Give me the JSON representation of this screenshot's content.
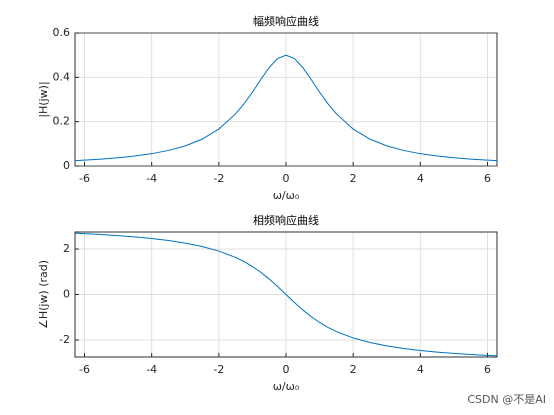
{
  "chart_data": [
    {
      "type": "line",
      "title": "幅频响应曲线",
      "xlabel": "ω/ω₀",
      "ylabel": "|H(jw)|",
      "color": "#0072bd",
      "grid": true,
      "x": [
        -6.2832,
        -6,
        -5.5,
        -5,
        -4.5,
        -4,
        -3.5,
        -3,
        -2.5,
        -2,
        -1.5,
        -1.25,
        -1,
        -0.75,
        -0.5,
        -0.25,
        0,
        0.25,
        0.5,
        0.75,
        1,
        1.25,
        1.5,
        2,
        2.5,
        3,
        3.5,
        4,
        4.5,
        5,
        5.5,
        6,
        6.2832
      ],
      "values": [
        0.0241,
        0.0263,
        0.031,
        0.037,
        0.0449,
        0.0556,
        0.0702,
        0.0909,
        0.1212,
        0.1667,
        0.2353,
        0.2807,
        0.3333,
        0.3902,
        0.4444,
        0.4848,
        0.5,
        0.4848,
        0.4444,
        0.3902,
        0.3333,
        0.2807,
        0.2353,
        0.1667,
        0.1212,
        0.0909,
        0.0702,
        0.0556,
        0.0449,
        0.037,
        0.031,
        0.0263,
        0.0241
      ],
      "xlim": [
        -6.2832,
        6.2832
      ],
      "xticks": [
        -6,
        -4,
        -2,
        0,
        2,
        4,
        6
      ],
      "ylim": [
        0,
        0.6
      ],
      "yticks": [
        0,
        0.2,
        0.4,
        0.6
      ]
    },
    {
      "type": "line",
      "title": "相频响应曲线",
      "xlabel": "ω/ω₀",
      "ylabel": "∠H(jw) (rad)",
      "color": "#0072bd",
      "grid": true,
      "x": [
        -6.2832,
        -6,
        -5.5,
        -5,
        -4.5,
        -4,
        -3.5,
        -3,
        -2.5,
        -2,
        -1.5,
        -1.25,
        -1,
        -0.75,
        -0.5,
        -0.25,
        0,
        0.25,
        0.5,
        0.75,
        1,
        1.25,
        1.5,
        2,
        2.5,
        3,
        3.5,
        4,
        4.5,
        5,
        5.5,
        6,
        6.2832
      ],
      "values": [
        2.699,
        2.679,
        2.639,
        2.59,
        2.533,
        2.462,
        2.374,
        2.261,
        2.111,
        1.911,
        1.63,
        1.448,
        1.231,
        0.975,
        0.68,
        0.35,
        0,
        -0.35,
        -0.68,
        -0.975,
        -1.231,
        -1.448,
        -1.63,
        -1.911,
        -2.111,
        -2.261,
        -2.374,
        -2.462,
        -2.533,
        -2.59,
        -2.639,
        -2.679,
        -2.699
      ],
      "xlim": [
        -6.2832,
        6.2832
      ],
      "xticks": [
        -6,
        -4,
        -2,
        0,
        2,
        4,
        6
      ],
      "ylim": [
        -2.75,
        2.75
      ],
      "yticks": [
        -2,
        0,
        2
      ]
    }
  ],
  "watermark": "CSDN @不是AI"
}
